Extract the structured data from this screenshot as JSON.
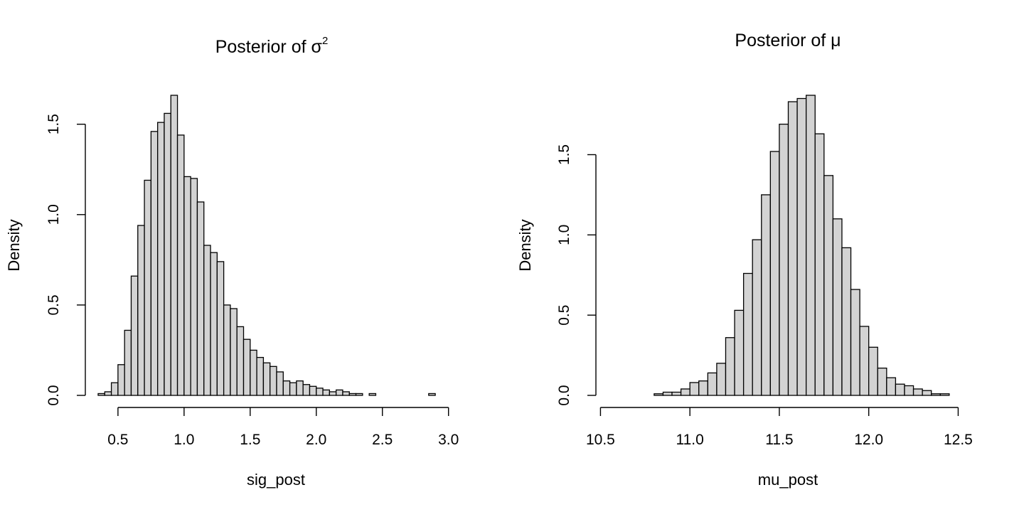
{
  "colors": {
    "bar_fill": "#d3d3d3",
    "bar_stroke": "#000000",
    "axis": "#000000",
    "background": "#ffffff"
  },
  "chart_data": [
    {
      "type": "bar",
      "title": "Posterior of σ",
      "title_superscript": "2",
      "xlabel": "sig_post",
      "ylabel": "Density",
      "x_ticks": [
        "0.5",
        "1.0",
        "1.5",
        "2.0",
        "2.5",
        "3.0"
      ],
      "y_ticks": [
        "0.0",
        "0.5",
        "1.0",
        "1.5"
      ],
      "x_tick_values": [
        0.5,
        1.0,
        1.5,
        2.0,
        2.5,
        3.0
      ],
      "y_tick_values": [
        0.0,
        0.5,
        1.0,
        1.5
      ],
      "xlim": [
        0.35,
        3.05
      ],
      "ylim": [
        0,
        1.66
      ],
      "bin_start": 0.35,
      "bin_width": 0.05,
      "values": [
        0.01,
        0.02,
        0.07,
        0.17,
        0.36,
        0.66,
        0.94,
        1.19,
        1.46,
        1.51,
        1.56,
        1.66,
        1.44,
        1.21,
        1.2,
        1.07,
        0.83,
        0.79,
        0.74,
        0.5,
        0.48,
        0.38,
        0.31,
        0.25,
        0.21,
        0.18,
        0.16,
        0.13,
        0.08,
        0.07,
        0.08,
        0.06,
        0.05,
        0.04,
        0.03,
        0.02,
        0.03,
        0.02,
        0.01,
        0.01,
        0.0,
        0.01,
        0.0,
        0.0,
        0.0,
        0.0,
        0.0,
        0.0,
        0.0,
        0.0,
        0.01,
        0.0,
        0.0,
        0.0
      ]
    },
    {
      "type": "bar",
      "title": "Posterior of μ",
      "xlabel": "mu_post",
      "ylabel": "Density",
      "x_ticks": [
        "10.5",
        "11.0",
        "11.5",
        "12.0",
        "12.5"
      ],
      "y_ticks": [
        "0.0",
        "0.5",
        "1.0",
        "1.5"
      ],
      "x_tick_values": [
        10.5,
        11.0,
        11.5,
        12.0,
        12.5
      ],
      "y_tick_values": [
        0.0,
        0.5,
        1.0,
        1.5
      ],
      "xlim": [
        10.55,
        12.55
      ],
      "ylim": [
        0,
        1.87
      ],
      "bin_start": 10.55,
      "bin_width": 0.05,
      "values": [
        0.0,
        0.0,
        0.0,
        0.0,
        0.0,
        0.01,
        0.02,
        0.02,
        0.04,
        0.08,
        0.09,
        0.14,
        0.2,
        0.36,
        0.53,
        0.76,
        0.97,
        1.25,
        1.52,
        1.69,
        1.83,
        1.85,
        1.87,
        1.63,
        1.37,
        1.1,
        0.92,
        0.66,
        0.43,
        0.3,
        0.17,
        0.11,
        0.07,
        0.06,
        0.04,
        0.03,
        0.01,
        0.01,
        0.0,
        0.0
      ]
    }
  ]
}
